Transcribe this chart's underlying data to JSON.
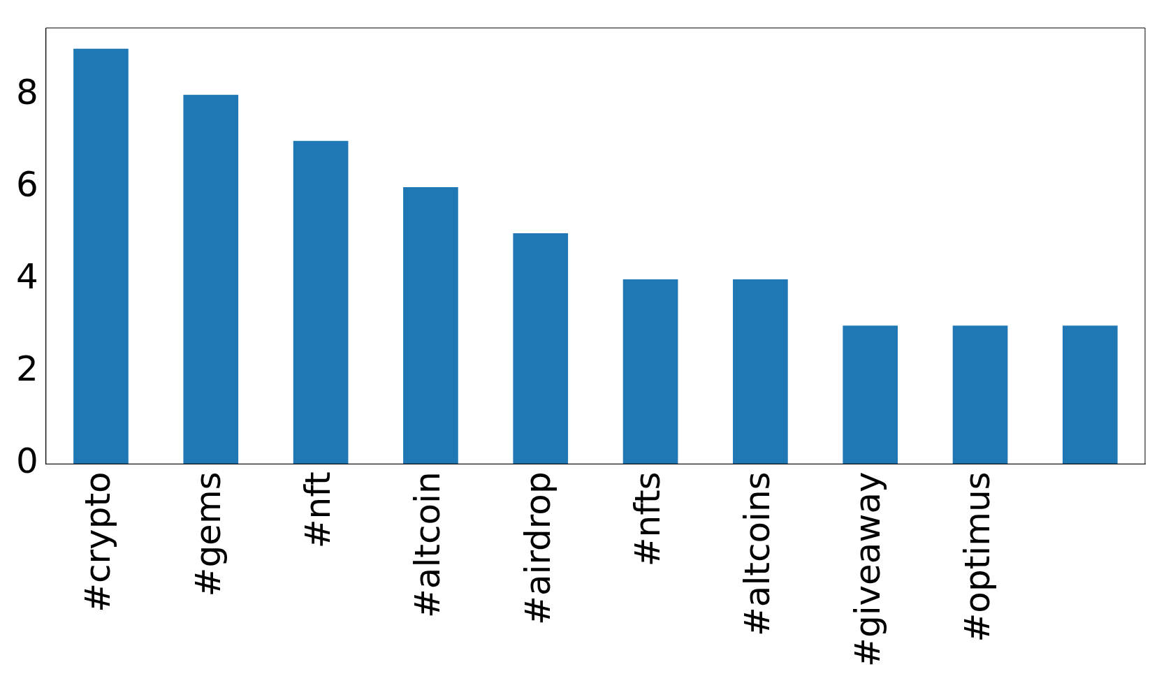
{
  "chart_data": {
    "type": "bar",
    "categories": [
      "#crypto",
      "#gems",
      "#nft",
      "#altcoin",
      "#airdrop",
      "#nfts",
      "#altcoins",
      "#giveaway",
      "#optimus",
      null
    ],
    "values": [
      9,
      8,
      7,
      6,
      5,
      4,
      4,
      3,
      3,
      3
    ],
    "color": "#1f77b4",
    "ylim": [
      0,
      9.45
    ],
    "yticks": [
      0,
      2,
      4,
      6,
      8
    ],
    "grid": false,
    "legend": false
  }
}
